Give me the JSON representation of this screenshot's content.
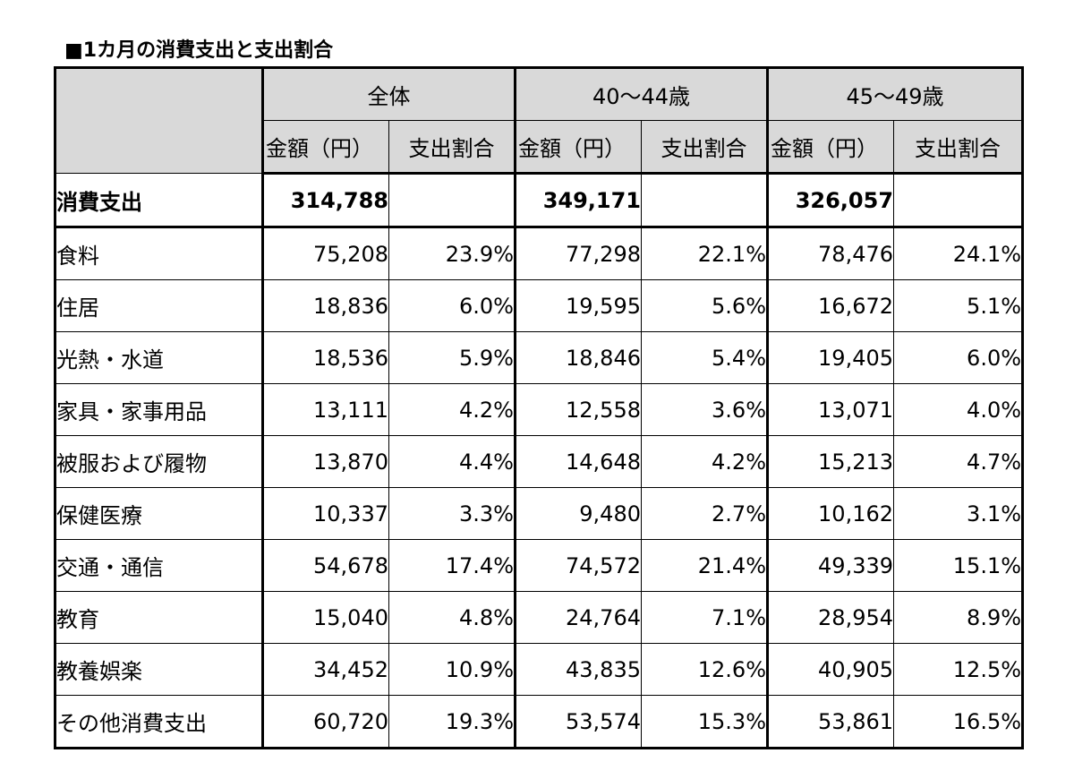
{
  "title": "■1カ月の消費支出と支出割合",
  "groups": [
    "全体",
    "40～44歳",
    "45～49歳"
  ],
  "subheaders": {
    "amount": "金額（円）",
    "ratio": "支出割合"
  },
  "total": {
    "label": "消費支出",
    "values": [
      "314,788",
      "349,171",
      "326,057"
    ]
  },
  "rows": [
    {
      "label": "食料",
      "cells": [
        "75,208",
        "23.9%",
        "77,298",
        "22.1%",
        "78,476",
        "24.1%"
      ]
    },
    {
      "label": "住居",
      "cells": [
        "18,836",
        "6.0%",
        "19,595",
        "5.6%",
        "16,672",
        "5.1%"
      ]
    },
    {
      "label": "光熱・水道",
      "cells": [
        "18,536",
        "5.9%",
        "18,846",
        "5.4%",
        "19,405",
        "6.0%"
      ]
    },
    {
      "label": "家具・家事用品",
      "cells": [
        "13,111",
        "4.2%",
        "12,558",
        "3.6%",
        "13,071",
        "4.0%"
      ]
    },
    {
      "label": "被服および履物",
      "cells": [
        "13,870",
        "4.4%",
        "14,648",
        "4.2%",
        "15,213",
        "4.7%"
      ]
    },
    {
      "label": "保健医療",
      "cells": [
        "10,337",
        "3.3%",
        "9,480",
        "2.7%",
        "10,162",
        "3.1%"
      ]
    },
    {
      "label": "交通・通信",
      "cells": [
        "54,678",
        "17.4%",
        "74,572",
        "21.4%",
        "49,339",
        "15.1%"
      ]
    },
    {
      "label": "教育",
      "cells": [
        "15,040",
        "4.8%",
        "24,764",
        "7.1%",
        "28,954",
        "8.9%"
      ]
    },
    {
      "label": "教養娯楽",
      "cells": [
        "34,452",
        "10.9%",
        "43,835",
        "12.6%",
        "40,905",
        "12.5%"
      ]
    },
    {
      "label": "その他消費支出",
      "cells": [
        "60,720",
        "19.3%",
        "53,574",
        "15.3%",
        "53,861",
        "16.5%"
      ]
    }
  ]
}
